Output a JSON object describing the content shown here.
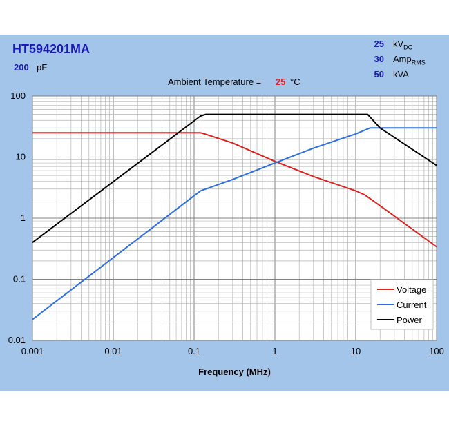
{
  "header": {
    "part_number": "HT594201MA",
    "capacitance_value": "200",
    "capacitance_unit": "pF",
    "ambient_label": "Ambient Temperature =",
    "ambient_value": "25",
    "ambient_unit": "°C",
    "ratings": [
      {
        "value": "25",
        "unit": "kV",
        "sub": "DC"
      },
      {
        "value": "30",
        "unit": "Amp",
        "sub": "RMS"
      },
      {
        "value": "50",
        "unit": "kVA",
        "sub": ""
      }
    ]
  },
  "colors": {
    "background": "#a3c5ea",
    "plot": "#ffffff",
    "text_blue": "#1a1ab4",
    "voltage": "#e0201e",
    "current": "#2e6fe0",
    "power": "#000000"
  },
  "chart_data": {
    "type": "line",
    "title": "",
    "xlabel": "Frequency (MHz)",
    "ylabel": "",
    "x_scale": "log",
    "y_scale": "log",
    "xlim": [
      0.001,
      100
    ],
    "ylim": [
      0.01,
      100
    ],
    "x_ticks": [
      "0.001",
      "0.01",
      "0.1",
      "1",
      "10",
      "100"
    ],
    "y_ticks": [
      "0.01",
      "0.1",
      "1",
      "10",
      "100"
    ],
    "grid": true,
    "legend_position": "bottom-right",
    "series": [
      {
        "name": "Voltage",
        "color": "#e0201e",
        "points": [
          [
            0.001,
            25
          ],
          [
            0.12,
            25
          ],
          [
            0.135,
            24
          ],
          [
            0.3,
            17
          ],
          [
            1,
            8.5
          ],
          [
            3,
            4.8
          ],
          [
            10,
            2.8
          ],
          [
            13,
            2.4
          ],
          [
            20,
            1.6
          ],
          [
            100,
            0.34
          ]
        ]
      },
      {
        "name": "Current",
        "color": "#2e6fe0",
        "points": [
          [
            0.001,
            0.022
          ],
          [
            0.12,
            2.8
          ],
          [
            0.3,
            4.3
          ],
          [
            1,
            8
          ],
          [
            3,
            14
          ],
          [
            10,
            24
          ],
          [
            15,
            30
          ],
          [
            100,
            30
          ]
        ]
      },
      {
        "name": "Power",
        "color": "#000000",
        "points": [
          [
            0.001,
            0.4
          ],
          [
            0.12,
            47
          ],
          [
            0.14,
            50
          ],
          [
            14,
            50
          ],
          [
            20,
            30
          ],
          [
            100,
            7.3
          ]
        ]
      }
    ]
  }
}
